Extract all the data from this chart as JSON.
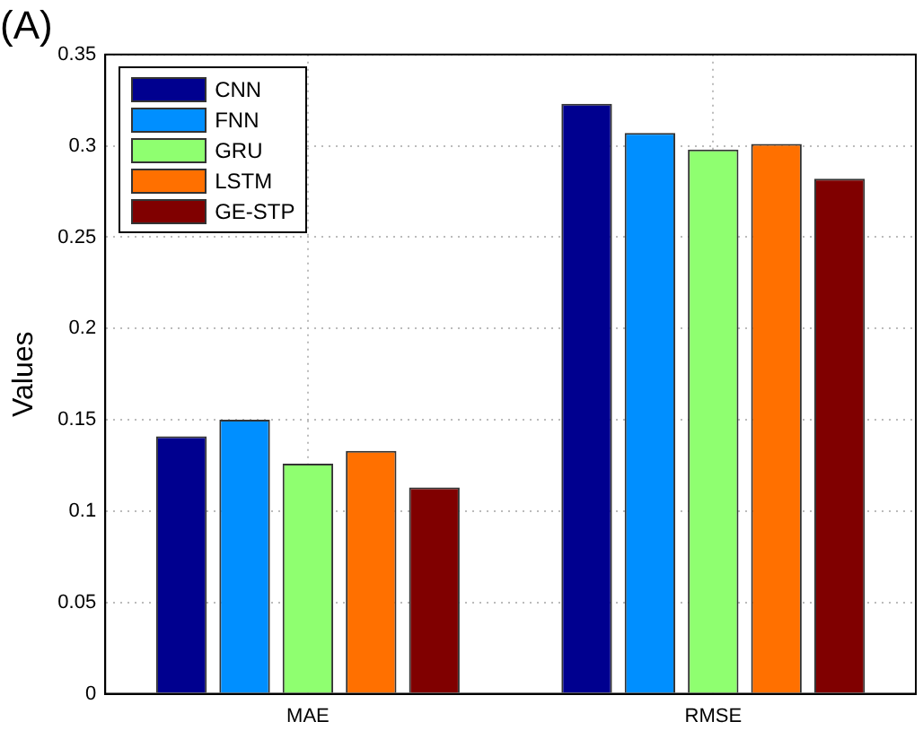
{
  "chart_data": {
    "type": "bar",
    "title": "(A)",
    "ylabel": "Values",
    "categories": [
      "MAE",
      "RMSE"
    ],
    "series": [
      {
        "name": "CNN",
        "color": "#00008f",
        "values": [
          0.141,
          0.323
        ]
      },
      {
        "name": "FNN",
        "color": "#008fff",
        "values": [
          0.15,
          0.307
        ]
      },
      {
        "name": "GRU",
        "color": "#8fff70",
        "values": [
          0.126,
          0.298
        ]
      },
      {
        "name": "LSTM",
        "color": "#ff7000",
        "values": [
          0.133,
          0.301
        ]
      },
      {
        "name": "GE-STP",
        "color": "#800000",
        "values": [
          0.113,
          0.282
        ]
      }
    ],
    "ylim": [
      0,
      0.35
    ],
    "yticks": [
      0,
      0.05,
      0.1,
      0.15,
      0.2,
      0.25,
      0.3,
      0.35
    ],
    "grid": true,
    "legend": "top left"
  }
}
